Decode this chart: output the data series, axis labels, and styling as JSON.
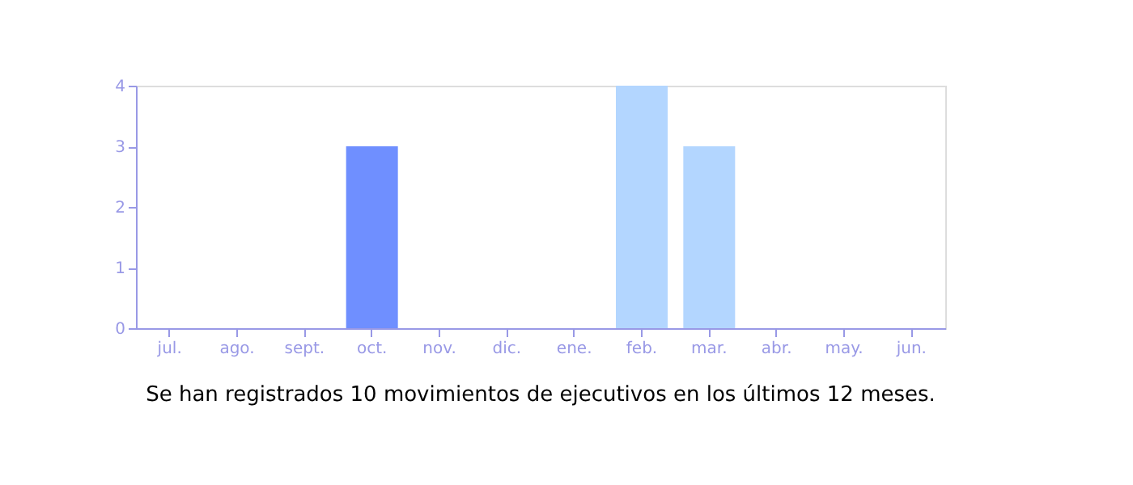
{
  "chart_data": {
    "type": "bar",
    "categories": [
      "jul.",
      "ago.",
      "sept.",
      "oct.",
      "nov.",
      "dic.",
      "ene.",
      "feb.",
      "mar.",
      "abr.",
      "may.",
      "jun."
    ],
    "values": [
      0,
      0,
      0,
      3,
      0,
      0,
      0,
      4,
      3,
      0,
      0,
      0
    ],
    "colors": [
      "#b3d6ff",
      "#b3d6ff",
      "#b3d6ff",
      "#6f8fff",
      "#b3d6ff",
      "#b3d6ff",
      "#b3d6ff",
      "#b3d6ff",
      "#b3d6ff",
      "#b3d6ff",
      "#b3d6ff",
      "#b3d6ff"
    ],
    "ylim": [
      0,
      4
    ],
    "yticks": [
      0,
      1,
      2,
      3,
      4
    ],
    "grid": false,
    "annotations": [
      "Se han registrados 10 movimientos de ejecutivos en los últimos 12 meses."
    ]
  }
}
